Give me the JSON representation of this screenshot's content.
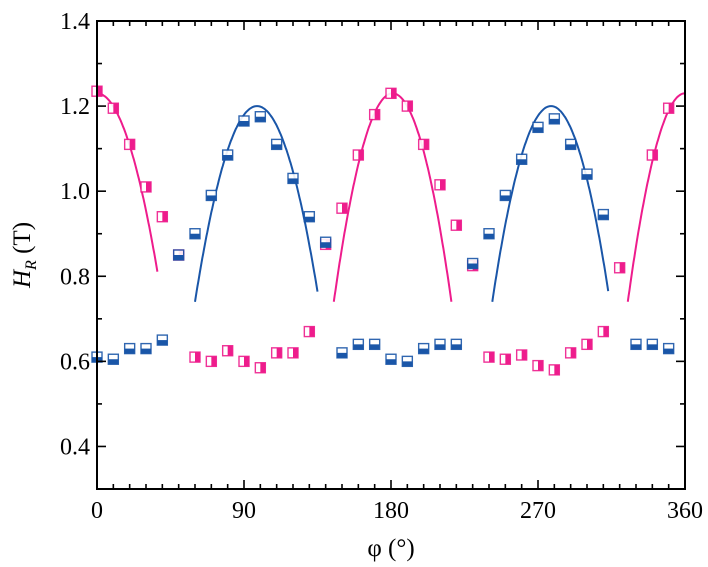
{
  "chart_data": {
    "type": "scatter",
    "xlabel": "φ (°)",
    "ylabel_main": "H",
    "ylabel_sub": "R",
    "ylabel_unit": " (T)",
    "xlim": [
      0,
      360
    ],
    "ylim": [
      0.3,
      1.4
    ],
    "x_ticks": [
      0,
      90,
      180,
      270,
      360
    ],
    "x_tick_labels": [
      "0",
      "90",
      "180",
      "270",
      "360"
    ],
    "x_minor_step": 10,
    "y_ticks": [
      0.4,
      0.6,
      0.8,
      1.0,
      1.2,
      1.4
    ],
    "y_tick_labels": [
      "0.4",
      "0.6",
      "0.8",
      "1.0",
      "1.2",
      "1.4"
    ],
    "y_minor_step": 0.1,
    "grid": false,
    "colors": {
      "pink": "#ee1c8c",
      "blue": "#1a56a8"
    },
    "series": [
      {
        "color": "pink",
        "marker": "square-right-filled",
        "points": [
          [
            0,
            1.235
          ],
          [
            10,
            1.195
          ],
          [
            20,
            1.11
          ],
          [
            30,
            1.01
          ],
          [
            40,
            0.94
          ],
          [
            50,
            0.85
          ],
          [
            60,
            0.61
          ],
          [
            70,
            0.6
          ],
          [
            80,
            0.625
          ],
          [
            90,
            0.6
          ],
          [
            100,
            0.585
          ],
          [
            110,
            0.62
          ],
          [
            120,
            0.62
          ],
          [
            130,
            0.67
          ],
          [
            140,
            0.875
          ],
          [
            150,
            0.96
          ],
          [
            160,
            1.085
          ],
          [
            170,
            1.18
          ],
          [
            180,
            1.23
          ],
          [
            190,
            1.2
          ],
          [
            200,
            1.11
          ],
          [
            210,
            1.015
          ],
          [
            220,
            0.92
          ],
          [
            230,
            0.825
          ],
          [
            240,
            0.61
          ],
          [
            250,
            0.605
          ],
          [
            260,
            0.615
          ],
          [
            270,
            0.59
          ],
          [
            280,
            0.58
          ],
          [
            290,
            0.62
          ],
          [
            300,
            0.64
          ],
          [
            310,
            0.67
          ],
          [
            320,
            0.82
          ],
          [
            340,
            1.085
          ],
          [
            350,
            1.195
          ]
        ]
      },
      {
        "color": "blue",
        "marker": "square-bottom-filled",
        "points": [
          [
            0,
            0.61
          ],
          [
            10,
            0.605
          ],
          [
            20,
            0.63
          ],
          [
            30,
            0.63
          ],
          [
            40,
            0.65
          ],
          [
            50,
            0.85
          ],
          [
            60,
            0.9
          ],
          [
            70,
            0.99
          ],
          [
            80,
            1.085
          ],
          [
            90,
            1.165
          ],
          [
            100,
            1.175
          ],
          [
            110,
            1.11
          ],
          [
            120,
            1.03
          ],
          [
            130,
            0.94
          ],
          [
            140,
            0.88
          ],
          [
            150,
            0.62
          ],
          [
            160,
            0.64
          ],
          [
            170,
            0.64
          ],
          [
            180,
            0.605
          ],
          [
            190,
            0.6
          ],
          [
            200,
            0.63
          ],
          [
            210,
            0.64
          ],
          [
            220,
            0.64
          ],
          [
            230,
            0.83
          ],
          [
            240,
            0.9
          ],
          [
            250,
            0.99
          ],
          [
            260,
            1.075
          ],
          [
            270,
            1.15
          ],
          [
            280,
            1.17
          ],
          [
            290,
            1.11
          ],
          [
            300,
            1.04
          ],
          [
            310,
            0.945
          ],
          [
            330,
            0.64
          ],
          [
            340,
            0.64
          ],
          [
            350,
            0.63
          ]
        ]
      }
    ],
    "fit_curves": [
      {
        "color": "pink",
        "x_range": [
          -40,
          37
        ],
        "peak": [
          0,
          1.23
        ],
        "end_y": 0.74
      },
      {
        "color": "blue",
        "x_range": [
          60,
          135
        ],
        "peak": [
          98,
          1.2
        ],
        "end_y": 0.74
      },
      {
        "color": "pink",
        "x_range": [
          145,
          217
        ],
        "peak": [
          181,
          1.23
        ],
        "end_y": 0.74
      },
      {
        "color": "blue",
        "x_range": [
          242,
          313
        ],
        "peak": [
          278,
          1.2
        ],
        "end_y": 0.74
      },
      {
        "color": "pink",
        "x_range": [
          325,
          360
        ],
        "peak": [
          360,
          1.23
        ],
        "end_y": 0.74
      }
    ]
  }
}
